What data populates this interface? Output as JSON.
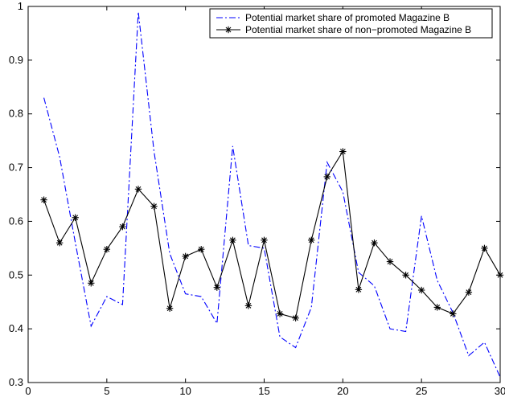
{
  "chart_data": {
    "type": "line",
    "title": "",
    "xlabel": "",
    "ylabel": "",
    "xlim": [
      0,
      30
    ],
    "ylim": [
      0.3,
      1.0
    ],
    "xticks": [
      0,
      5,
      10,
      15,
      20,
      25,
      30
    ],
    "xtick_labels": [
      "0",
      "5",
      "10",
      "15",
      "20",
      "25",
      "30"
    ],
    "yticks": [
      0.3,
      0.4,
      0.5,
      0.6,
      0.7,
      0.8,
      0.9,
      1.0
    ],
    "ytick_labels": [
      "0.3",
      "0.4",
      "0.5",
      "0.6",
      "0.7",
      "0.8",
      "0.9",
      "1"
    ],
    "grid": false,
    "legend_position": "top-right",
    "x": [
      1,
      2,
      3,
      4,
      5,
      6,
      7,
      8,
      9,
      10,
      11,
      12,
      13,
      14,
      15,
      16,
      17,
      18,
      19,
      20,
      21,
      22,
      23,
      24,
      25,
      26,
      27,
      28,
      29,
      30
    ],
    "series": [
      {
        "name": "Potential market share of promoted Magazine B",
        "color": "#0000ff",
        "style": "dash-dot",
        "marker": "none",
        "values": [
          0.83,
          0.72,
          0.56,
          0.405,
          0.46,
          0.445,
          0.99,
          0.73,
          0.54,
          0.465,
          0.46,
          0.41,
          0.74,
          0.555,
          0.55,
          0.385,
          0.365,
          0.44,
          0.71,
          0.655,
          0.505,
          0.48,
          0.4,
          0.395,
          0.61,
          0.49,
          0.43,
          0.35,
          0.375,
          0.31
        ]
      },
      {
        "name": "Potential market share of non−promoted Magazine B",
        "color": "#000000",
        "style": "solid",
        "marker": "asterisk",
        "values": [
          0.64,
          0.56,
          0.607,
          0.485,
          0.548,
          0.59,
          0.66,
          0.628,
          0.438,
          0.535,
          0.548,
          0.477,
          0.565,
          0.443,
          0.565,
          0.428,
          0.42,
          0.565,
          0.683,
          0.73,
          0.473,
          0.56,
          0.525,
          0.5,
          0.472,
          0.44,
          0.428,
          0.468,
          0.55,
          0.5
        ]
      }
    ]
  }
}
